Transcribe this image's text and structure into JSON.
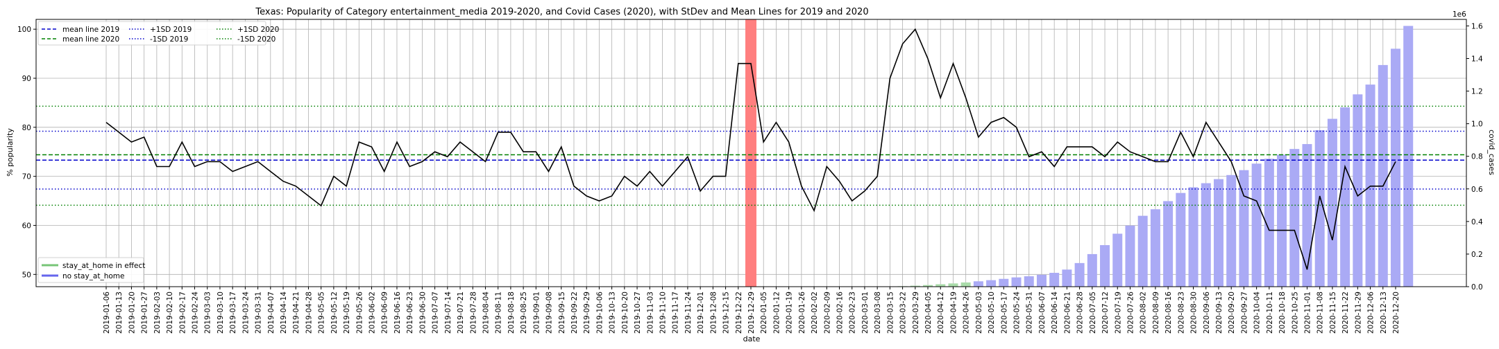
{
  "chart_data": {
    "type": "line",
    "title": "Texas: Popularity of Category entertainment_media 2019-2020, and Covid Cases (2020), with StDev and Mean Lines for 2019 and 2020",
    "xlabel": "date",
    "ylabel": "% popularity",
    "y2label": "covid_cases",
    "y2_multiplier_label": "1e6",
    "ylim": [
      47.5,
      102
    ],
    "y2lim": [
      0,
      1.64
    ],
    "yticks": [
      50,
      60,
      70,
      80,
      90,
      100
    ],
    "y2ticks": [
      0.0,
      0.2,
      0.4,
      0.6,
      0.8,
      1.0,
      1.2,
      1.4,
      1.6
    ],
    "grid": true,
    "x": [
      "2019-01-06",
      "2019-01-13",
      "2019-01-20",
      "2019-01-27",
      "2019-02-03",
      "2019-02-10",
      "2019-02-17",
      "2019-02-24",
      "2019-03-03",
      "2019-03-10",
      "2019-03-17",
      "2019-03-24",
      "2019-03-31",
      "2019-04-07",
      "2019-04-14",
      "2019-04-21",
      "2019-04-28",
      "2019-05-05",
      "2019-05-12",
      "2019-05-19",
      "2019-05-26",
      "2019-06-02",
      "2019-06-09",
      "2019-06-16",
      "2019-06-23",
      "2019-06-30",
      "2019-07-07",
      "2019-07-14",
      "2019-07-21",
      "2019-07-28",
      "2019-08-04",
      "2019-08-11",
      "2019-08-18",
      "2019-08-25",
      "2019-09-01",
      "2019-09-08",
      "2019-09-15",
      "2019-09-22",
      "2019-09-29",
      "2019-10-06",
      "2019-10-13",
      "2019-10-20",
      "2019-10-27",
      "2019-11-03",
      "2019-11-10",
      "2019-11-17",
      "2019-11-24",
      "2019-12-01",
      "2019-12-08",
      "2019-12-15",
      "2019-12-22",
      "2019-12-29",
      "2020-01-05",
      "2020-01-12",
      "2020-01-19",
      "2020-01-26",
      "2020-02-02",
      "2020-02-09",
      "2020-02-16",
      "2020-02-23",
      "2020-03-01",
      "2020-03-08",
      "2020-03-15",
      "2020-03-22",
      "2020-03-29",
      "2020-04-05",
      "2020-04-12",
      "2020-04-19",
      "2020-04-26",
      "2020-05-03",
      "2020-05-10",
      "2020-05-17",
      "2020-05-24",
      "2020-05-31",
      "2020-06-07",
      "2020-06-14",
      "2020-06-21",
      "2020-06-28",
      "2020-07-05",
      "2020-07-12",
      "2020-07-19",
      "2020-07-26",
      "2020-08-02",
      "2020-08-09",
      "2020-08-16",
      "2020-08-23",
      "2020-08-30",
      "2020-09-06",
      "2020-09-13",
      "2020-09-20",
      "2020-09-27",
      "2020-10-04",
      "2020-10-11",
      "2020-10-18",
      "2020-10-25",
      "2020-11-01",
      "2020-11-08",
      "2020-11-15",
      "2020-11-22",
      "2020-11-29",
      "2020-12-06",
      "2020-12-13",
      "2020-12-20"
    ],
    "popularity": [
      81,
      79,
      77,
      78,
      72,
      72,
      77,
      72,
      73,
      73,
      71,
      72,
      73,
      71,
      69,
      68,
      66,
      64,
      70,
      68,
      77,
      76,
      71,
      77,
      72,
      73,
      75,
      74,
      77,
      75,
      73,
      79,
      79,
      75,
      75,
      71,
      76,
      68,
      66,
      65,
      66,
      70,
      68,
      71,
      68,
      71,
      74,
      67,
      70,
      70,
      93,
      93,
      77,
      81,
      77,
      68,
      63,
      72,
      69,
      65,
      67,
      70,
      90,
      97,
      100,
      94,
      86,
      93,
      86,
      78,
      81,
      82,
      80,
      74,
      75,
      72,
      76,
      76,
      76,
      74,
      77,
      75,
      74,
      73,
      73,
      79,
      74,
      81,
      77,
      73,
      66,
      65,
      59,
      59,
      59,
      51,
      66,
      57,
      72,
      66,
      68,
      68,
      73
    ],
    "covid_cases": [
      0,
      0,
      0,
      0,
      0,
      0,
      0,
      0,
      0,
      0,
      0,
      0,
      0,
      0,
      0,
      0,
      0,
      0,
      0,
      0,
      0,
      0,
      0,
      0,
      0,
      0,
      0,
      0,
      0,
      0,
      0,
      0,
      0,
      0,
      0,
      0,
      0,
      0,
      0,
      0,
      0,
      0,
      0,
      0,
      0,
      0,
      0,
      0,
      0,
      0,
      0,
      0,
      0,
      0,
      0,
      0,
      0,
      0,
      0,
      0,
      0,
      0,
      0.001,
      0.003,
      0.006,
      0.01,
      0.015,
      0.02,
      0.026,
      0.033,
      0.04,
      0.048,
      0.057,
      0.064,
      0.073,
      0.085,
      0.105,
      0.145,
      0.2,
      0.255,
      0.325,
      0.375,
      0.435,
      0.475,
      0.525,
      0.575,
      0.61,
      0.635,
      0.66,
      0.685,
      0.715,
      0.755,
      0.785,
      0.81,
      0.845,
      0.875,
      0.96,
      1.03,
      1.1,
      1.18,
      1.24,
      1.36,
      1.46,
      1.6
    ],
    "covid_bars_green_count": 7,
    "highlight_date": "2019-12-29",
    "reference_lines": [
      {
        "name": "mean line 2019",
        "value": 73.3,
        "color": "#0000cc",
        "style": "dashed"
      },
      {
        "name": "mean line 2020",
        "value": 74.4,
        "color": "#008000",
        "style": "dashed"
      },
      {
        "name": "+1SD 2019",
        "value": 79.2,
        "color": "#0000cc",
        "style": "dotted"
      },
      {
        "name": "-1SD 2019",
        "value": 67.4,
        "color": "#0000cc",
        "style": "dotted"
      },
      {
        "name": "+1SD 2020",
        "value": 84.3,
        "color": "#008000",
        "style": "dotted"
      },
      {
        "name": "-1SD 2020",
        "value": 64.1,
        "color": "#008000",
        "style": "dotted"
      }
    ],
    "legend_top": [
      {
        "label": "mean line 2019",
        "color": "#0000cc",
        "style": "dashed"
      },
      {
        "label": "mean line 2020",
        "color": "#008000",
        "style": "dashed"
      },
      {
        "label": "+1SD 2019",
        "color": "#0000cc",
        "style": "dotted"
      },
      {
        "label": "-1SD 2019",
        "color": "#0000cc",
        "style": "dotted"
      },
      {
        "label": "+1SD 2020",
        "color": "#008000",
        "style": "dotted"
      },
      {
        "label": "-1SD 2020",
        "color": "#008000",
        "style": "dotted"
      }
    ],
    "legend_bottom": [
      {
        "label": "stay_at_home in effect",
        "color": "#77c577"
      },
      {
        "label": "no stay_at_home",
        "color": "#6666ee"
      }
    ],
    "legend_top_placement": "upper-left",
    "legend_bottom_placement": "lower-left",
    "colors": {
      "line": "#000000",
      "bar_no_stay": "#aaaaf5",
      "bar_stay": "#aadcaa",
      "highlight": "#ff7f7f"
    }
  }
}
